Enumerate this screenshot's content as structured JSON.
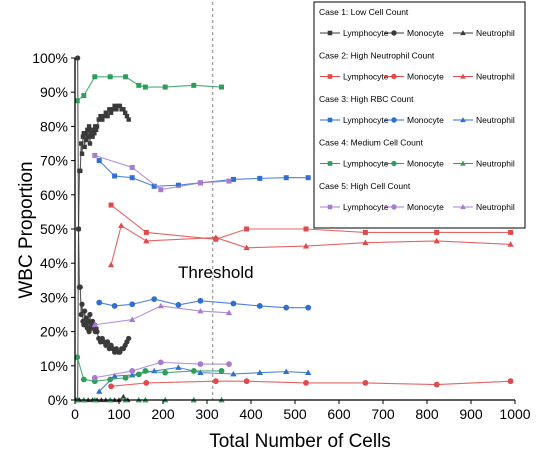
{
  "chart_data": {
    "type": "line",
    "title": "",
    "xlabel": "Total Number of Cells",
    "ylabel": "WBC Proportion",
    "xlim": [
      0,
      1000
    ],
    "ylim": [
      0,
      100
    ],
    "xticks": [
      0,
      100,
      200,
      300,
      400,
      500,
      600,
      700,
      800,
      900,
      1000
    ],
    "yticks": [
      0,
      10,
      20,
      30,
      40,
      50,
      60,
      70,
      80,
      90,
      100
    ],
    "ytick_labels": [
      "0%",
      "10%",
      "20%",
      "30%",
      "40%",
      "50%",
      "60%",
      "70%",
      "80%",
      "90%",
      "100%"
    ],
    "grid": false,
    "legend_position": "top-right",
    "threshold": {
      "x": 313,
      "label": "Threshold"
    },
    "cases": [
      {
        "title": "Case 1: Low Cell Count",
        "color": "#3a3a3a",
        "series": [
          {
            "name": "Lymphocyte",
            "marker": "square",
            "x": [
              6,
              8,
              10,
              12,
              14,
              16,
              18,
              20,
              22,
              24,
              26,
              28,
              30,
              32,
              34,
              36,
              38,
              40,
              42,
              44,
              46,
              48,
              50,
              54,
              58,
              62,
              66,
              70,
              74,
              78,
              82,
              86,
              90,
              94,
              98,
              102,
              106,
              110,
              114,
              118,
              122
            ],
            "y": [
              0,
              50,
              67,
              67,
              75,
              72,
              77,
              78,
              74,
              78,
              76,
              79,
              77,
              80,
              75,
              79,
              78,
              77,
              79,
              78,
              80,
              79,
              80,
              82,
              83,
              82,
              83,
              84,
              83,
              85,
              84,
              85,
              86,
              85,
              86,
              86,
              85,
              85,
              84,
              83,
              82
            ]
          },
          {
            "name": "Monocyte",
            "marker": "circle",
            "x": [
              6,
              8,
              10,
              12,
              14,
              16,
              18,
              20,
              22,
              24,
              26,
              28,
              30,
              32,
              34,
              36,
              38,
              40,
              42,
              44,
              46,
              48,
              50,
              54,
              58,
              62,
              66,
              70,
              74,
              78,
              82,
              86,
              90,
              94,
              98,
              102,
              106,
              110,
              114,
              118,
              122
            ],
            "y": [
              100,
              50,
              33,
              33,
              25,
              28,
              23,
              22,
              26,
              22,
              24,
              21,
              23,
              20,
              25,
              21,
              22,
              23,
              21,
              22,
              20,
              21,
              20,
              18,
              17,
              18,
              17,
              16,
              17,
              15,
              16,
              15,
              14,
              15,
              14,
              14,
              15,
              15,
              16,
              17,
              18
            ]
          },
          {
            "name": "Neutrophil",
            "marker": "triangle",
            "x": [
              10,
              20,
              30,
              40,
              50,
              60,
              70,
              80,
              90,
              100,
              110,
              120
            ],
            "y": [
              0,
              0,
              0,
              0,
              0,
              0,
              0,
              0,
              0,
              0,
              1,
              0
            ]
          }
        ]
      },
      {
        "title": "Case 2: High Neutrophil Count",
        "color": "#e04a4a",
        "series": [
          {
            "name": "Lymphocyte",
            "marker": "square",
            "x": [
              82,
              162,
              320,
              390,
              525,
              660,
              822,
              990
            ],
            "y": [
              57,
              49,
              47,
              50,
              50,
              49,
              49,
              49
            ]
          },
          {
            "name": "Monocyte",
            "marker": "circle",
            "x": [
              82,
              162,
              320,
              390,
              525,
              660,
              822,
              990
            ],
            "y": [
              4,
              5,
              5.5,
              5.5,
              5,
              5,
              4.5,
              5.5
            ]
          },
          {
            "name": "Neutrophil",
            "marker": "triangle",
            "x": [
              82,
              105,
              162,
              320,
              390,
              525,
              660,
              822,
              990
            ],
            "y": [
              39.5,
              51,
              46.5,
              47.5,
              44.5,
              45,
              46,
              46.5,
              45.5
            ]
          }
        ]
      },
      {
        "title": "Case 3: High RBC Count",
        "color": "#2f6fd0",
        "series": [
          {
            "name": "Lymphocyte",
            "marker": "square",
            "x": [
              55,
              90,
              130,
              180,
              235,
              285,
              360,
              420,
              480,
              530
            ],
            "y": [
              70,
              65.5,
              65,
              62.5,
              62.8,
              63.5,
              64.5,
              64.8,
              65,
              65
            ]
          },
          {
            "name": "Monocyte",
            "marker": "circle",
            "x": [
              55,
              90,
              130,
              180,
              235,
              285,
              360,
              420,
              480,
              530
            ],
            "y": [
              28.5,
              27.5,
              28,
              29.5,
              27.8,
              29,
              28.2,
              27.5,
              27,
              27
            ]
          },
          {
            "name": "Neutrophil",
            "marker": "triangle",
            "x": [
              55,
              90,
              130,
              180,
              235,
              285,
              360,
              420,
              480,
              530
            ],
            "y": [
              2.5,
              7,
              7.3,
              8.5,
              9.5,
              8,
              7.6,
              8,
              8.3,
              8
            ]
          }
        ]
      },
      {
        "title": "Case 4: Medium Cell Count",
        "color": "#2e9e5a",
        "series": [
          {
            "name": "Lymphocyte",
            "marker": "square",
            "x": [
              5,
              20,
              45,
              80,
              115,
              145,
              160,
              205,
              270,
              333
            ],
            "y": [
              87.5,
              89,
              94.5,
              94.5,
              94.5,
              92,
              91.5,
              91.5,
              92,
              91.5
            ]
          },
          {
            "name": "Monocyte",
            "marker": "circle",
            "x": [
              5,
              20,
              45,
              80,
              115,
              145,
              160,
              205,
              270,
              333
            ],
            "y": [
              12.5,
              6,
              5.5,
              6,
              6.5,
              7.5,
              8.5,
              8,
              8.5,
              8.5
            ]
          },
          {
            "name": "Neutrophil",
            "marker": "triangle",
            "x": [
              5,
              20,
              45,
              80,
              115,
              145,
              160,
              205,
              270,
              333
            ],
            "y": [
              0,
              0,
              0,
              0,
              0,
              0,
              0,
              0,
              0,
              0
            ]
          }
        ]
      },
      {
        "title": "Case 5: High Cell Count",
        "color": "#a97bd0",
        "series": [
          {
            "name": "Lymphocyte",
            "marker": "square",
            "x": [
              45,
              130,
              195,
              285,
              350
            ],
            "y": [
              71.5,
              68,
              61.5,
              63.5,
              64
            ]
          },
          {
            "name": "Monocyte",
            "marker": "circle",
            "x": [
              45,
              130,
              195,
              285,
              350
            ],
            "y": [
              6.5,
              8.5,
              11,
              10.5,
              10.5
            ]
          },
          {
            "name": "Neutrophil",
            "marker": "triangle",
            "x": [
              45,
              130,
              195,
              285,
              350
            ],
            "y": [
              22,
              23.5,
              27.5,
              26,
              25.5
            ]
          }
        ]
      }
    ]
  }
}
